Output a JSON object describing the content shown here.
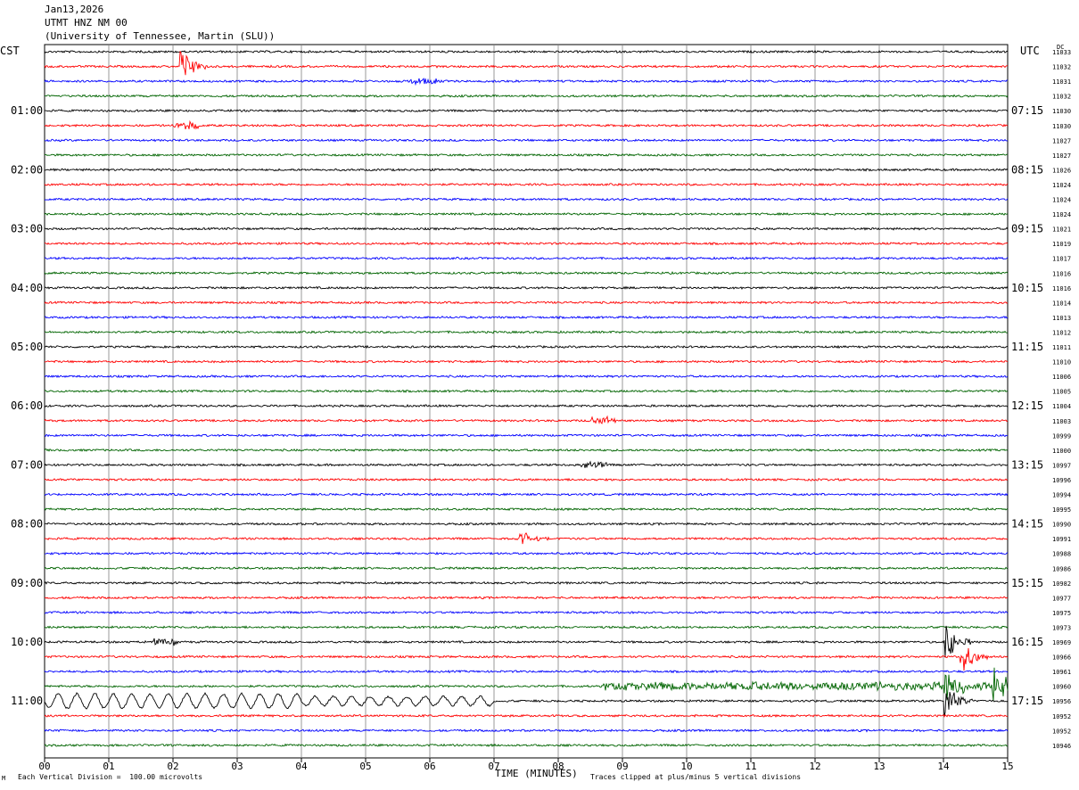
{
  "header": {
    "date": "Jan13,2026",
    "station": "UTMT HNZ NM 00",
    "institution": "(University of Tennessee, Martin (SLU))"
  },
  "left_timezone": "CST",
  "right_timezone": "UTC",
  "dc_label": "DC",
  "xaxis_label": "TIME (MINUTES)",
  "footer": {
    "left": "Each Vertical Division =  100.00 microvolts",
    "right": "Traces clipped at plus/minus 5 vertical divisions",
    "logo": "M"
  },
  "colors": {
    "trace_cycle": [
      "#000000",
      "#ff0000",
      "#0000ff",
      "#006400"
    ],
    "grid": "#808080"
  },
  "chart_data": {
    "type": "line",
    "title": "UTMT HNZ NM 00",
    "xlabel": "TIME (MINUTES)",
    "ylabel": "",
    "xlim": [
      0,
      15
    ],
    "x_ticks": [
      "00",
      "01",
      "02",
      "03",
      "04",
      "05",
      "06",
      "07",
      "08",
      "09",
      "10",
      "11",
      "12",
      "13",
      "14",
      "15"
    ],
    "left_time_labels": [
      "01:00",
      "02:00",
      "03:00",
      "04:00",
      "05:00",
      "06:00",
      "07:00",
      "08:00",
      "09:00",
      "10:00",
      "11:00"
    ],
    "right_time_labels": [
      "07:15",
      "08:15",
      "09:15",
      "10:15",
      "11:15",
      "12:15",
      "13:15",
      "14:15",
      "15:15",
      "16:15",
      "17:15"
    ],
    "traces_per_hour": 4,
    "minutes_per_trace": 15,
    "dc_offsets": [
      11033,
      11032,
      11031,
      11032,
      11030,
      11030,
      11027,
      11027,
      11026,
      11024,
      11024,
      11024,
      11021,
      11019,
      11017,
      11016,
      11016,
      11014,
      11013,
      11012,
      11011,
      11010,
      11006,
      11005,
      11004,
      11003,
      10999,
      11000,
      10997,
      10996,
      10994,
      10995,
      10990,
      10991,
      10988,
      10986,
      10982,
      10977,
      10975,
      10973,
      10969,
      10966,
      10961,
      10960,
      10956,
      10952,
      10952,
      10946
    ],
    "events": [
      {
        "trace": 1,
        "minute": 2.15,
        "amplitude": "large"
      },
      {
        "trace": 2,
        "minute": 5.75,
        "amplitude": "small"
      },
      {
        "trace": 5,
        "minute": 2.05,
        "amplitude": "small"
      },
      {
        "trace": 25,
        "minute": 8.55,
        "amplitude": "small"
      },
      {
        "trace": 28,
        "minute": 8.4,
        "amplitude": "small"
      },
      {
        "trace": 33,
        "minute": 7.5,
        "amplitude": "medium"
      },
      {
        "trace": 40,
        "minute": 1.75,
        "amplitude": "small"
      },
      {
        "trace": 40,
        "minute": 14.05,
        "amplitude": "large"
      },
      {
        "trace": 41,
        "minute": 14.3,
        "amplitude": "large"
      },
      {
        "trace": 43,
        "minute": 8.7,
        "amplitude": "sustained-noise"
      },
      {
        "trace": 43,
        "minute": 14.05,
        "amplitude": "large"
      },
      {
        "trace": 43,
        "minute": 14.8,
        "amplitude": "large"
      },
      {
        "trace": 44,
        "minute": 0.5,
        "amplitude": "long-period-wave"
      },
      {
        "trace": 44,
        "minute": 14.05,
        "amplitude": "large"
      }
    ]
  }
}
